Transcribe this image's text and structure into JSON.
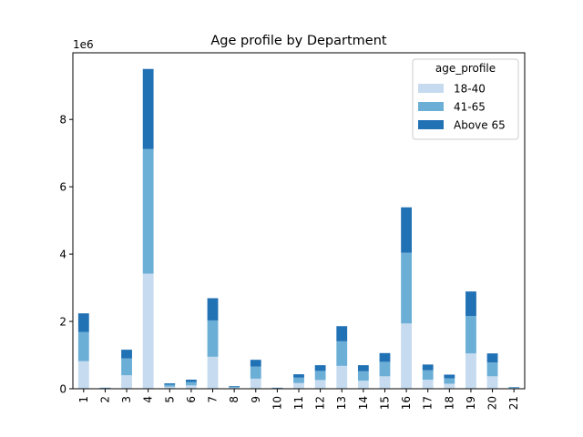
{
  "chart_data": {
    "type": "bar",
    "stacked": true,
    "title": "Age profile by Department",
    "xlabel": "",
    "ylabel": "",
    "y_offset_label": "1e6",
    "ylim": [
      0,
      9.98
    ],
    "yticks": [
      0,
      2,
      4,
      6,
      8
    ],
    "ytick_labels": [
      "0",
      "2",
      "4",
      "6",
      "8"
    ],
    "categories": [
      "1",
      "2",
      "3",
      "4",
      "5",
      "6",
      "7",
      "8",
      "9",
      "10",
      "11",
      "12",
      "13",
      "14",
      "15",
      "16",
      "17",
      "18",
      "19",
      "20",
      "21"
    ],
    "legend": {
      "title": "age_profile",
      "position": "top-right"
    },
    "series": [
      {
        "name": "18-40",
        "color": "#c6dbef",
        "values": [
          0.82,
          0.01,
          0.4,
          3.42,
          0.06,
          0.1,
          0.95,
          0.03,
          0.3,
          0.01,
          0.17,
          0.26,
          0.68,
          0.24,
          0.37,
          1.94,
          0.27,
          0.15,
          1.05,
          0.37,
          0.02
        ]
      },
      {
        "name": "41-65",
        "color": "#6baed6",
        "values": [
          0.87,
          0.01,
          0.5,
          3.7,
          0.06,
          0.1,
          1.08,
          0.03,
          0.36,
          0.01,
          0.16,
          0.27,
          0.73,
          0.28,
          0.43,
          2.1,
          0.28,
          0.16,
          1.11,
          0.41,
          0.02
        ]
      },
      {
        "name": "Above 65",
        "color": "#2171b5",
        "values": [
          0.55,
          0.01,
          0.26,
          2.38,
          0.04,
          0.07,
          0.66,
          0.02,
          0.2,
          0.01,
          0.1,
          0.17,
          0.45,
          0.18,
          0.26,
          1.35,
          0.17,
          0.11,
          0.73,
          0.27,
          0.01
        ]
      }
    ]
  }
}
